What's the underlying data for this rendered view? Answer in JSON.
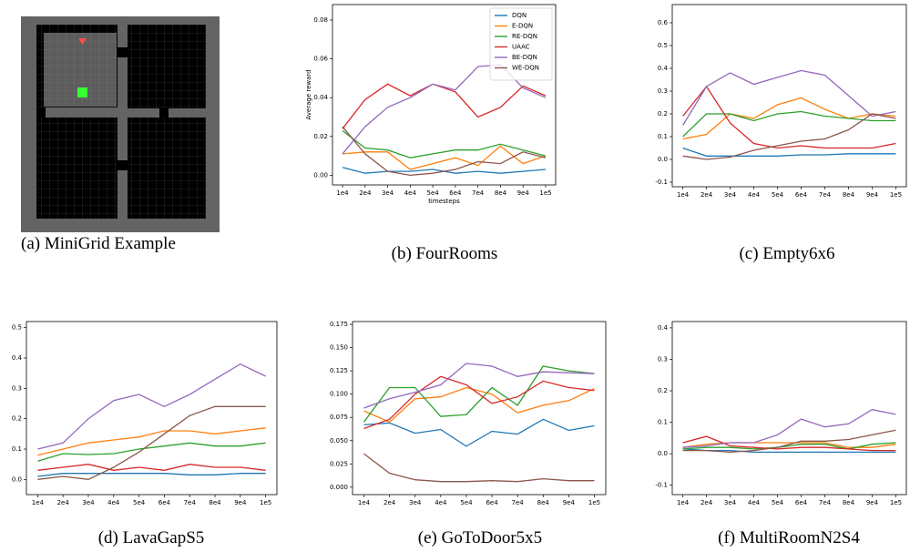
{
  "image_caption": "(a) MiniGrid Example",
  "chart_data": [
    {
      "type": "line",
      "caption": "(b) FourRooms",
      "ylabel": "Average reward",
      "xlabel": "timesteps",
      "legend": "upper right",
      "categories": [
        "1e4",
        "2e4",
        "3e4",
        "4e4",
        "5e4",
        "6e4",
        "7e4",
        "8e4",
        "9e4",
        "1e5"
      ],
      "ylim": [
        -0.005,
        0.088
      ],
      "yticks": [
        {
          "value": 0,
          "label": "0.00"
        },
        {
          "value": 0.02,
          "label": "0.02"
        },
        {
          "value": 0.04,
          "label": "0.04"
        },
        {
          "value": 0.06,
          "label": "0.06"
        },
        {
          "value": 0.08,
          "label": "0.08"
        }
      ],
      "series": [
        {
          "name": "DQN",
          "color": "#1f77b4",
          "values": [
            0.004,
            0.001,
            0.002,
            0.002,
            0.003,
            0.001,
            0.002,
            0.001,
            0.002,
            0.003
          ]
        },
        {
          "name": "E-DQN",
          "color": "#ff7f0e",
          "values": [
            0.011,
            0.012,
            0.012,
            0.003,
            0.006,
            0.009,
            0.005,
            0.015,
            0.006,
            0.01
          ]
        },
        {
          "name": "RE-DQN",
          "color": "#2ca02c",
          "values": [
            0.023,
            0.014,
            0.013,
            0.009,
            0.011,
            0.013,
            0.013,
            0.016,
            0.013,
            0.01
          ]
        },
        {
          "name": "UAAC",
          "color": "#d62728",
          "values": [
            0.024,
            0.039,
            0.047,
            0.041,
            0.047,
            0.043,
            0.03,
            0.035,
            0.046,
            0.041
          ]
        },
        {
          "name": "BE-DQN",
          "color": "#9467bd",
          "values": [
            0.011,
            0.025,
            0.035,
            0.04,
            0.047,
            0.044,
            0.056,
            0.057,
            0.045,
            0.04
          ]
        },
        {
          "name": "WE-DQN",
          "color": "#8c564b",
          "values": [
            0.025,
            0.011,
            0.002,
            0.0,
            0.001,
            0.003,
            0.007,
            0.006,
            0.012,
            0.009
          ]
        }
      ]
    },
    {
      "type": "line",
      "caption": "(c) Empty6x6",
      "categories": [
        "1e4",
        "2e4",
        "3e4",
        "4e4",
        "5e4",
        "6e4",
        "7e4",
        "8e4",
        "9e4",
        "1e5"
      ],
      "ylim": [
        -0.12,
        0.68
      ],
      "yticks": [
        -0.1,
        {
          "value": 0,
          "label": "0.0"
        },
        0.1,
        0.2,
        0.3,
        0.4,
        0.5,
        0.6
      ],
      "series": [
        {
          "color": "#1f77b4",
          "values": [
            0.05,
            0.015,
            0.015,
            0.015,
            0.015,
            0.02,
            0.02,
            0.025,
            0.025,
            0.025
          ]
        },
        {
          "color": "#ff7f0e",
          "values": [
            0.09,
            0.11,
            0.2,
            0.18,
            0.24,
            0.27,
            0.22,
            0.18,
            0.2,
            0.19
          ]
        },
        {
          "color": "#2ca02c",
          "values": [
            0.1,
            0.2,
            0.2,
            0.17,
            0.2,
            0.21,
            0.19,
            0.18,
            0.17,
            0.17
          ]
        },
        {
          "color": "#d62728",
          "values": [
            0.19,
            0.32,
            0.16,
            0.07,
            0.05,
            0.06,
            0.05,
            0.05,
            0.05,
            0.07
          ]
        },
        {
          "color": "#9467bd",
          "values": [
            0.15,
            0.32,
            0.38,
            0.33,
            0.36,
            0.39,
            0.37,
            0.28,
            0.19,
            0.21
          ]
        },
        {
          "color": "#8c564b",
          "values": [
            0.015,
            0.0,
            0.01,
            0.04,
            0.06,
            0.08,
            0.09,
            0.13,
            0.2,
            0.18
          ]
        }
      ]
    },
    {
      "type": "line",
      "caption": "(d) LavaGapS5",
      "categories": [
        "1e4",
        "2e4",
        "3e4",
        "4e4",
        "5e4",
        "6e4",
        "7e4",
        "8e4",
        "9e4",
        "1e5"
      ],
      "ylim": [
        -0.05,
        0.52
      ],
      "yticks": [
        {
          "value": 0,
          "label": "0.0"
        },
        0.1,
        0.2,
        0.3,
        0.4,
        0.5
      ],
      "series": [
        {
          "color": "#1f77b4",
          "values": [
            0.01,
            0.02,
            0.02,
            0.02,
            0.02,
            0.02,
            0.015,
            0.015,
            0.02,
            0.02
          ]
        },
        {
          "color": "#ff7f0e",
          "values": [
            0.08,
            0.1,
            0.12,
            0.13,
            0.14,
            0.16,
            0.16,
            0.15,
            0.16,
            0.17
          ]
        },
        {
          "color": "#2ca02c",
          "values": [
            0.06,
            0.085,
            0.082,
            0.085,
            0.1,
            0.11,
            0.12,
            0.11,
            0.11,
            0.12
          ]
        },
        {
          "color": "#d62728",
          "values": [
            0.03,
            0.04,
            0.05,
            0.03,
            0.04,
            0.03,
            0.05,
            0.04,
            0.04,
            0.03
          ]
        },
        {
          "color": "#9467bd",
          "values": [
            0.1,
            0.12,
            0.2,
            0.26,
            0.28,
            0.24,
            0.28,
            0.33,
            0.38,
            0.34
          ]
        },
        {
          "color": "#8c564b",
          "values": [
            0.0,
            0.01,
            0.0,
            0.04,
            0.09,
            0.15,
            0.21,
            0.24,
            0.24,
            0.24
          ]
        }
      ]
    },
    {
      "type": "line",
      "caption": "(e) GoToDoor5x5",
      "categories": [
        "1e4",
        "2e4",
        "3e4",
        "4e4",
        "5e4",
        "6e4",
        "7e4",
        "8e4",
        "9e4",
        "1e5"
      ],
      "ylim": [
        -0.008,
        0.178
      ],
      "yticks": [
        {
          "value": 0,
          "label": "0.000"
        },
        {
          "value": 0.025,
          "label": "0.025"
        },
        {
          "value": 0.05,
          "label": "0.050"
        },
        {
          "value": 0.075,
          "label": "0.075"
        },
        {
          "value": 0.1,
          "label": "0.100"
        },
        {
          "value": 0.125,
          "label": "0.125"
        },
        {
          "value": 0.15,
          "label": "0.150"
        },
        {
          "value": 0.175,
          "label": "0.175"
        }
      ],
      "series": [
        {
          "color": "#1f77b4",
          "values": [
            0.067,
            0.069,
            0.058,
            0.062,
            0.044,
            0.06,
            0.057,
            0.073,
            0.061,
            0.066
          ]
        },
        {
          "color": "#ff7f0e",
          "values": [
            0.082,
            0.07,
            0.095,
            0.097,
            0.107,
            0.1,
            0.08,
            0.088,
            0.093,
            0.106
          ]
        },
        {
          "color": "#2ca02c",
          "values": [
            0.07,
            0.107,
            0.107,
            0.076,
            0.078,
            0.107,
            0.088,
            0.13,
            0.125,
            0.122
          ]
        },
        {
          "color": "#d62728",
          "values": [
            0.063,
            0.073,
            0.1,
            0.119,
            0.11,
            0.09,
            0.097,
            0.114,
            0.107,
            0.104
          ]
        },
        {
          "color": "#9467bd",
          "values": [
            0.085,
            0.095,
            0.102,
            0.11,
            0.133,
            0.13,
            0.119,
            0.124,
            0.123,
            0.122
          ]
        },
        {
          "color": "#8c564b",
          "values": [
            0.036,
            0.015,
            0.008,
            0.006,
            0.006,
            0.007,
            0.006,
            0.009,
            0.007,
            0.007
          ]
        }
      ]
    },
    {
      "type": "line",
      "caption": "(f) MultiRoomN2S4",
      "categories": [
        "1e4",
        "2e4",
        "3e4",
        "4e4",
        "5e4",
        "6e4",
        "7e4",
        "8e4",
        "9e4",
        "1e5"
      ],
      "ylim": [
        -0.13,
        0.42
      ],
      "yticks": [
        -0.1,
        {
          "value": 0,
          "label": "0.0"
        },
        0.1,
        0.2,
        0.3,
        0.4
      ],
      "series": [
        {
          "color": "#1f77b4",
          "values": [
            0.015,
            0.01,
            0.01,
            0.005,
            0.005,
            0.005,
            0.005,
            0.005,
            0.005,
            0.005
          ]
        },
        {
          "color": "#ff7f0e",
          "values": [
            0.02,
            0.03,
            0.035,
            0.035,
            0.035,
            0.035,
            0.035,
            0.02,
            0.02,
            0.03
          ]
        },
        {
          "color": "#2ca02c",
          "values": [
            0.015,
            0.02,
            0.02,
            0.015,
            0.02,
            0.03,
            0.03,
            0.015,
            0.03,
            0.035
          ]
        },
        {
          "color": "#d62728",
          "values": [
            0.035,
            0.055,
            0.025,
            0.02,
            0.015,
            0.02,
            0.02,
            0.015,
            0.01,
            0.01
          ]
        },
        {
          "color": "#9467bd",
          "values": [
            0.02,
            0.025,
            0.035,
            0.035,
            0.06,
            0.11,
            0.085,
            0.095,
            0.14,
            0.125
          ]
        },
        {
          "color": "#8c564b",
          "values": [
            0.01,
            0.01,
            0.005,
            0.01,
            0.02,
            0.04,
            0.04,
            0.045,
            0.06,
            0.075
          ]
        }
      ]
    }
  ]
}
